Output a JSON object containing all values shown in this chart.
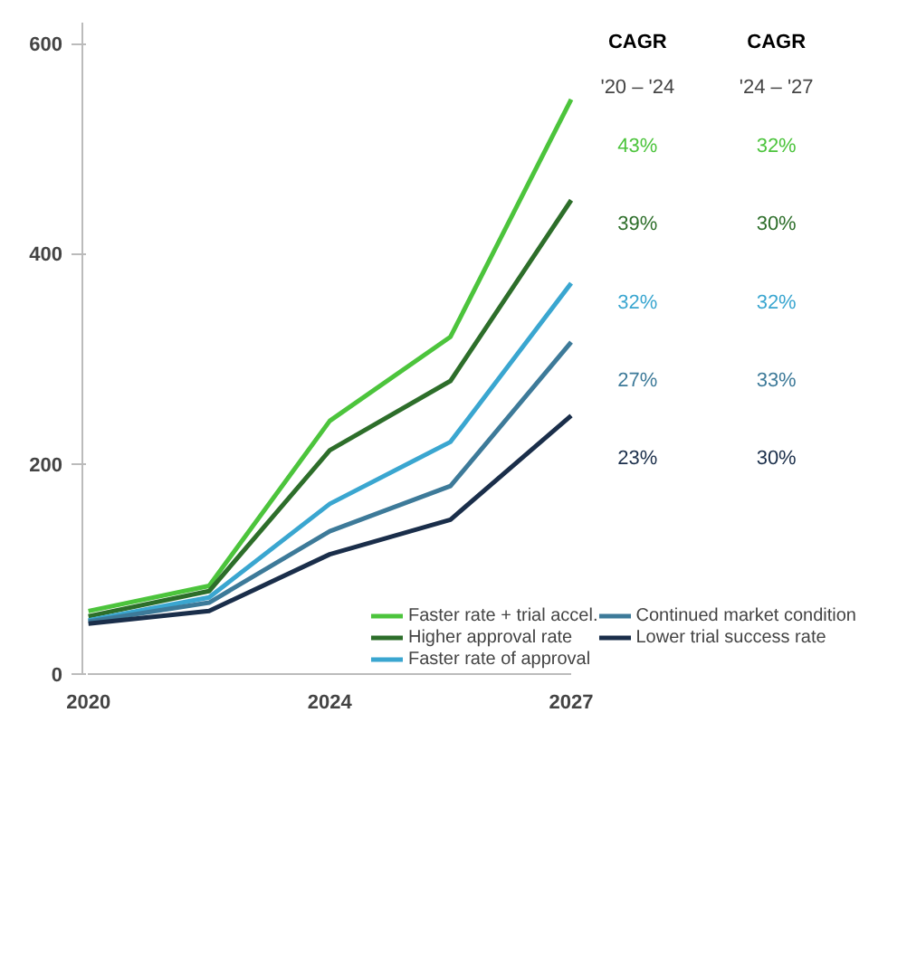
{
  "chart_data": {
    "type": "line",
    "categories": [
      "2020",
      null,
      "2024",
      null,
      "2027"
    ],
    "ylim": [
      0,
      620
    ],
    "yticks": [
      0,
      200,
      400,
      600
    ],
    "grid": false,
    "legend": "bottom right",
    "marker": "none",
    "line_style": "solid",
    "series": [
      {
        "name": "Faster rate + trial accel.",
        "color": "#4cc43c",
        "values": [
          60,
          84,
          241,
          321,
          547
        ]
      },
      {
        "name": "Higher approval rate",
        "color": "#2d6e2a",
        "values": [
          55,
          79,
          213,
          279,
          451
        ]
      },
      {
        "name": "Faster rate of approval",
        "color": "#3aa6d0",
        "values": [
          51,
          73,
          162,
          221,
          372
        ]
      },
      {
        "name": "Continued market condition",
        "color": "#3d7a99",
        "values": [
          50,
          68,
          136,
          179,
          316
        ]
      },
      {
        "name": "Lower trial success rate",
        "color": "#1a2e4a",
        "values": [
          48,
          60,
          114,
          147,
          246
        ]
      }
    ],
    "annotations": [
      "CAGR",
      "CAGR",
      "'20 – '24",
      "'24 – '27",
      "43%",
      "32%",
      "39%",
      "30%",
      "32%",
      "32%",
      "27%",
      "33%",
      "23%",
      "30%"
    ]
  }
}
